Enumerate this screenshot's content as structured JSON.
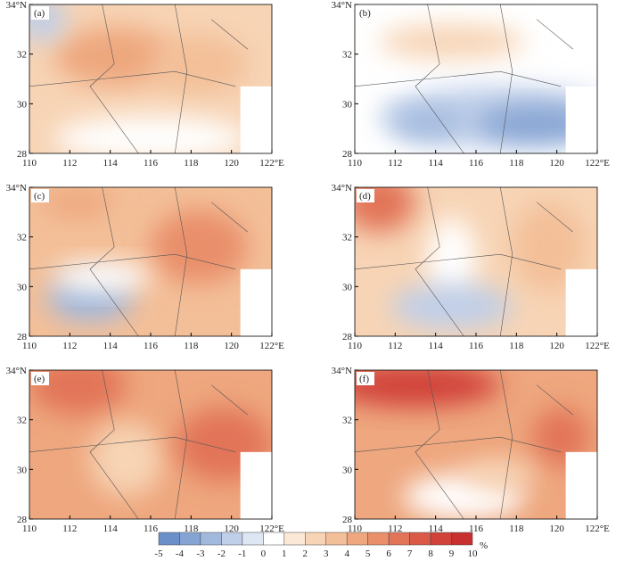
{
  "panels": [
    {
      "label": "(a)"
    },
    {
      "label": "(b)"
    },
    {
      "label": "(c)"
    },
    {
      "label": "(d)"
    },
    {
      "label": "(e)"
    },
    {
      "label": "(f)"
    }
  ],
  "xlim": [
    110,
    122
  ],
  "xticks": [
    110,
    112,
    114,
    116,
    118,
    120,
    {
      "value": 122,
      "label": "122°E"
    }
  ],
  "ylim": [
    28,
    34
  ],
  "yticks": [
    28,
    30,
    32,
    {
      "value": 34,
      "label": "34°N"
    }
  ],
  "colorbar": {
    "ticks": [
      -5,
      -4,
      -3,
      -2,
      -1,
      0,
      1,
      2,
      3,
      4,
      5,
      6,
      7,
      8,
      9,
      10
    ],
    "unit": "%",
    "colors": [
      "#6b8fc9",
      "#86a4d3",
      "#a2b9de",
      "#bfcfe9",
      "#dde6f3",
      "#ffffff",
      "#fbe8d6",
      "#f7d4b5",
      "#f3bf98",
      "#eea77e",
      "#e98f6a",
      "#e27458",
      "#da5a47",
      "#d1423a",
      "#c82f30"
    ]
  }
}
